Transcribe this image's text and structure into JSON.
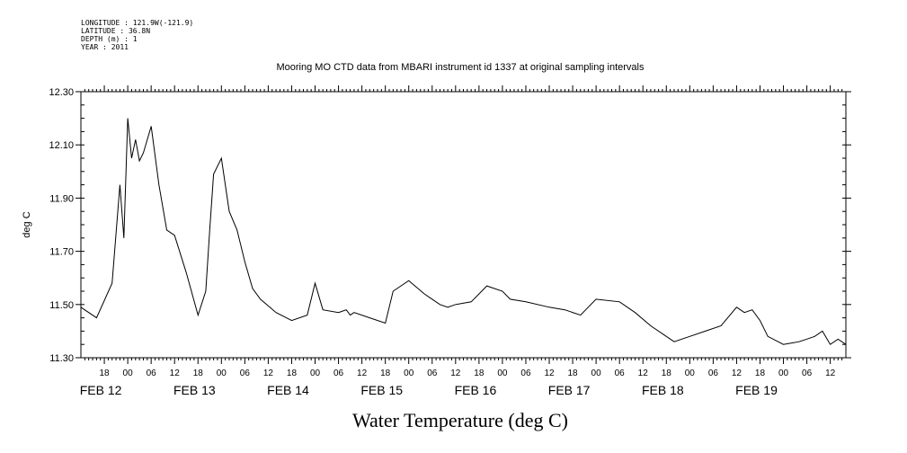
{
  "header": {
    "longitude": "LONGITUDE : 121.9W(-121.9)",
    "latitude": "LATITUDE : 36.8N",
    "depth": "DEPTH (m) : 1",
    "year": "YEAR : 2011"
  },
  "chart_data": {
    "type": "line",
    "title": "Mooring MO CTD data from MBARI instrument id 1337 at original sampling intervals",
    "xlabel": "Water Temperature (deg C)",
    "ylabel": "deg C",
    "ylim": [
      11.3,
      12.3
    ],
    "yticks": [
      11.3,
      11.5,
      11.7,
      11.9,
      12.1,
      12.3
    ],
    "ytick_labels": [
      "11.30",
      "11.50",
      "11.70",
      "11.90",
      "12.10",
      "12.30"
    ],
    "xlim": [
      "2011-02-11 12:00",
      "2011-02-19 16:00"
    ],
    "hour_ticks": [
      "18",
      "00",
      "06",
      "12",
      "18",
      "00",
      "06",
      "12",
      "18",
      "00",
      "06",
      "12",
      "18",
      "00",
      "06",
      "12",
      "18",
      "00",
      "06",
      "12",
      "18",
      "00",
      "06",
      "12",
      "18",
      "00",
      "06",
      "12",
      "18",
      "00",
      "06",
      "12"
    ],
    "day_labels": [
      "FEB 12",
      "FEB 13",
      "FEB 14",
      "FEB 15",
      "FEB 16",
      "FEB 17",
      "FEB 18",
      "FEB 19"
    ],
    "grid": false,
    "series": [
      {
        "line_color": "#000000",
        "x": [
          "2011-02-11 12:00",
          "2011-02-11 16:00",
          "2011-02-11 20:00",
          "2011-02-11 22:00",
          "2011-02-11 23:00",
          "2011-02-12 00:00",
          "2011-02-12 01:00",
          "2011-02-12 02:00",
          "2011-02-12 03:00",
          "2011-02-12 04:00",
          "2011-02-12 06:00",
          "2011-02-12 08:00",
          "2011-02-12 10:00",
          "2011-02-12 12:00",
          "2011-02-12 15:00",
          "2011-02-12 18:00",
          "2011-02-12 20:00",
          "2011-02-12 21:00",
          "2011-02-12 22:00",
          "2011-02-13 00:00",
          "2011-02-13 02:00",
          "2011-02-13 04:00",
          "2011-02-13 06:00",
          "2011-02-13 08:00",
          "2011-02-13 10:00",
          "2011-02-13 14:00",
          "2011-02-13 18:00",
          "2011-02-13 22:00",
          "2011-02-14 00:00",
          "2011-02-14 02:00",
          "2011-02-14 06:00",
          "2011-02-14 08:00",
          "2011-02-14 09:00",
          "2011-02-14 10:00",
          "2011-02-14 14:00",
          "2011-02-14 18:00",
          "2011-02-14 20:00",
          "2011-02-15 00:00",
          "2011-02-15 04:00",
          "2011-02-15 06:00",
          "2011-02-15 08:00",
          "2011-02-15 10:00",
          "2011-02-15 12:00",
          "2011-02-15 16:00",
          "2011-02-15 20:00",
          "2011-02-16 00:00",
          "2011-02-16 02:00",
          "2011-02-16 06:00",
          "2011-02-16 12:00",
          "2011-02-16 16:00",
          "2011-02-16 20:00",
          "2011-02-17 00:00",
          "2011-02-17 06:00",
          "2011-02-17 10:00",
          "2011-02-17 14:00",
          "2011-02-17 18:00",
          "2011-02-17 20:00",
          "2011-02-18 00:00",
          "2011-02-18 04:00",
          "2011-02-18 08:00",
          "2011-02-18 12:00",
          "2011-02-18 14:00",
          "2011-02-18 16:00",
          "2011-02-18 18:00",
          "2011-02-18 20:00",
          "2011-02-19 00:00",
          "2011-02-19 04:00",
          "2011-02-19 06:00",
          "2011-02-19 08:00",
          "2011-02-19 10:00",
          "2011-02-19 12:00",
          "2011-02-19 14:00",
          "2011-02-19 16:00"
        ],
        "values": [
          11.49,
          11.45,
          11.58,
          11.95,
          11.75,
          12.2,
          12.05,
          12.12,
          12.04,
          12.07,
          12.17,
          11.95,
          11.78,
          11.76,
          11.62,
          11.46,
          11.55,
          11.78,
          11.99,
          12.05,
          11.85,
          11.78,
          11.66,
          11.56,
          11.52,
          11.47,
          11.44,
          11.46,
          11.58,
          11.48,
          11.47,
          11.48,
          11.46,
          11.47,
          11.45,
          11.43,
          11.55,
          11.59,
          11.54,
          11.52,
          11.5,
          11.49,
          11.5,
          11.51,
          11.57,
          11.55,
          11.52,
          11.51,
          11.49,
          11.48,
          11.46,
          11.52,
          11.51,
          11.47,
          11.42,
          11.38,
          11.36,
          11.38,
          11.4,
          11.42,
          11.49,
          11.47,
          11.48,
          11.44,
          11.38,
          11.35,
          11.36,
          11.37,
          11.38,
          11.4,
          11.35,
          11.37,
          11.35
        ]
      }
    ]
  }
}
